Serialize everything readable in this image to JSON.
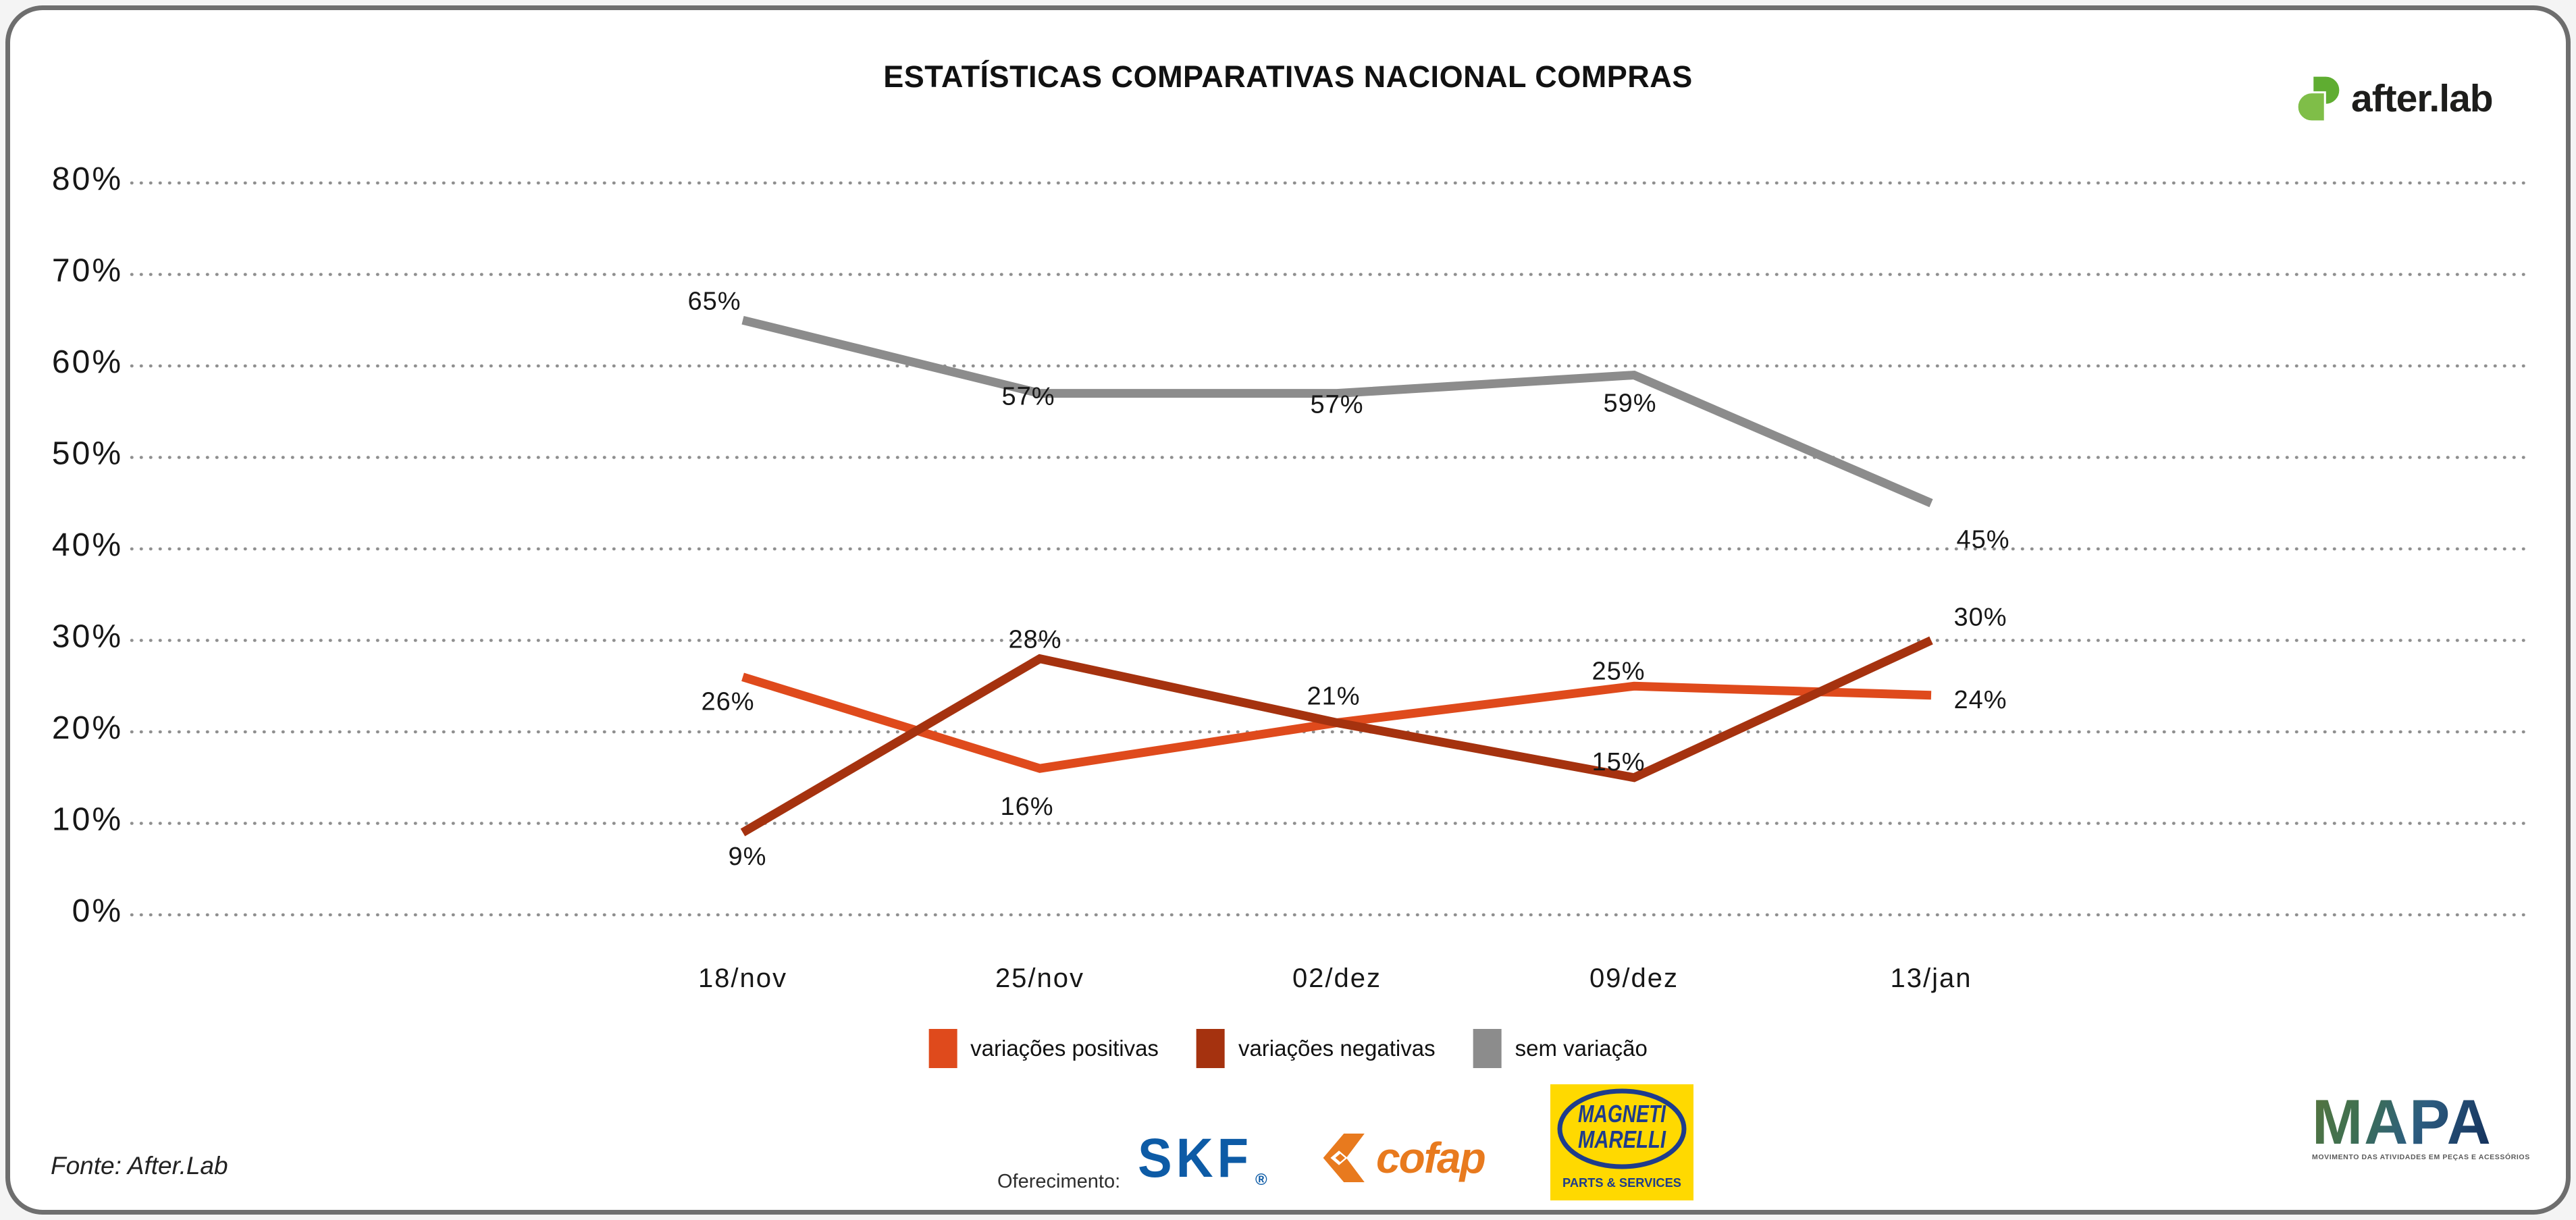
{
  "page": {
    "title": "ESTATÍSTICAS COMPARATIVAS NACIONAL COMPRAS",
    "source_note": "Fonte: After.Lab",
    "sponsor_label": "Oferecimento:"
  },
  "branding": {
    "afterlab": {
      "text": "after.lab",
      "green_dark": "#5FAD31",
      "green_light": "#7FBE48"
    },
    "mapa": {
      "text": "MAPA",
      "tagline": "MOVIMENTO DAS ATIVIDADES EM PEÇAS E ACESSÓRIOS"
    }
  },
  "sponsors": {
    "skf": {
      "text": "SKF",
      "reg": "®",
      "color": "#0D5BA6"
    },
    "cofap": {
      "text": "cofap",
      "color": "#E87A1E"
    },
    "magneti": {
      "line1": "MAGNETI",
      "line2": "MARELLI",
      "line3": "PARTS & SERVICES",
      "bg": "#FFD900",
      "blue": "#1E3C8C"
    }
  },
  "chart_data": {
    "type": "line",
    "title": "ESTATÍSTICAS COMPARATIVAS NACIONAL COMPRAS",
    "categories": [
      "18/nov",
      "25/nov",
      "02/dez",
      "09/dez",
      "13/jan"
    ],
    "y_ticks": [
      "80%",
      "70%",
      "60%",
      "50%",
      "40%",
      "30%",
      "20%",
      "10%",
      "0%"
    ],
    "ylim": [
      0,
      80
    ],
    "grid": "dotted-horizontal",
    "legend_position": "bottom",
    "series": [
      {
        "name": "variações positivas",
        "color": "#DF4A1C",
        "values": [
          26,
          16,
          21,
          25,
          24
        ],
        "labels": [
          "26%",
          "16%",
          "21%",
          "25%",
          "24%"
        ]
      },
      {
        "name": "variações negativas",
        "color": "#A5320F",
        "values": [
          9,
          28,
          21,
          15,
          30
        ],
        "labels": [
          "9%",
          "28%",
          "",
          "15%",
          "30%"
        ]
      },
      {
        "name": "sem variação",
        "color": "#8C8C8C",
        "values": [
          65,
          57,
          57,
          59,
          45
        ],
        "labels": [
          "65%",
          "57%",
          "57%",
          "59%",
          "45%"
        ]
      }
    ]
  }
}
